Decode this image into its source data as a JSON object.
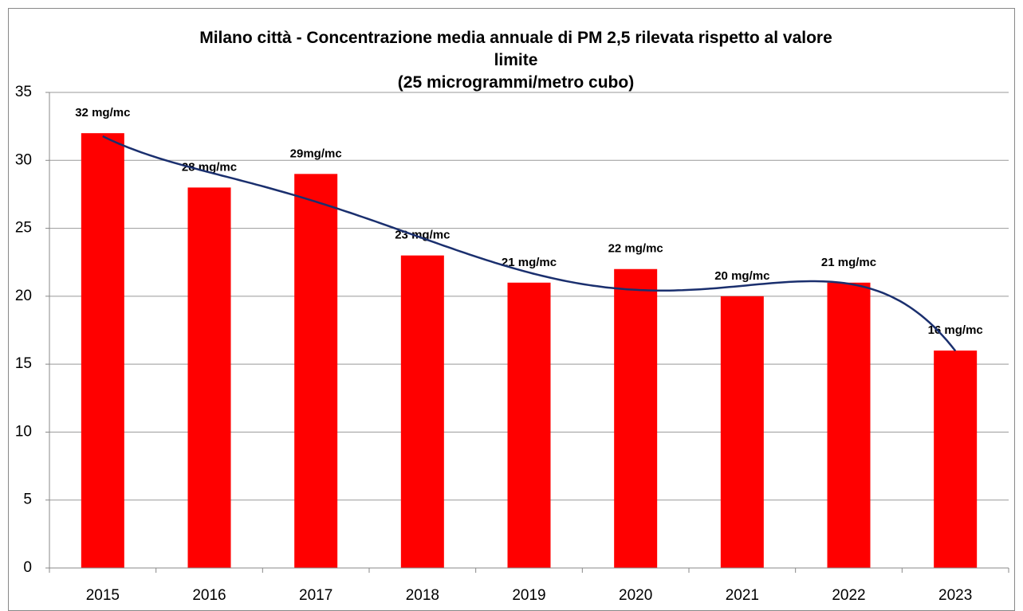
{
  "chart_data": {
    "type": "bar",
    "title": "Milano città - Concentrazione media annuale di PM 2,5 rilevata rispetto al valore limite",
    "subtitle": "(25 microgrammi/metro cubo)",
    "categories": [
      "2015",
      "2016",
      "2017",
      "2018",
      "2019",
      "2020",
      "2021",
      "2022",
      "2023"
    ],
    "values": [
      32,
      28,
      29,
      23,
      21,
      22,
      20,
      21,
      16
    ],
    "value_labels": [
      "32 mg/mc",
      "28 mg/mc",
      "29mg/mc",
      "23 mg/mc",
      "21 mg/mc",
      "22 mg/mc",
      "20 mg/mc",
      "21 mg/mc",
      "16 mg/mc"
    ],
    "color": "#ff0000",
    "trendline": "polynomial",
    "trendline_color": "#1a2f6e",
    "ylim": [
      0,
      35
    ],
    "yticks": [
      0,
      5,
      10,
      15,
      20,
      25,
      30,
      35
    ],
    "grid": true
  }
}
